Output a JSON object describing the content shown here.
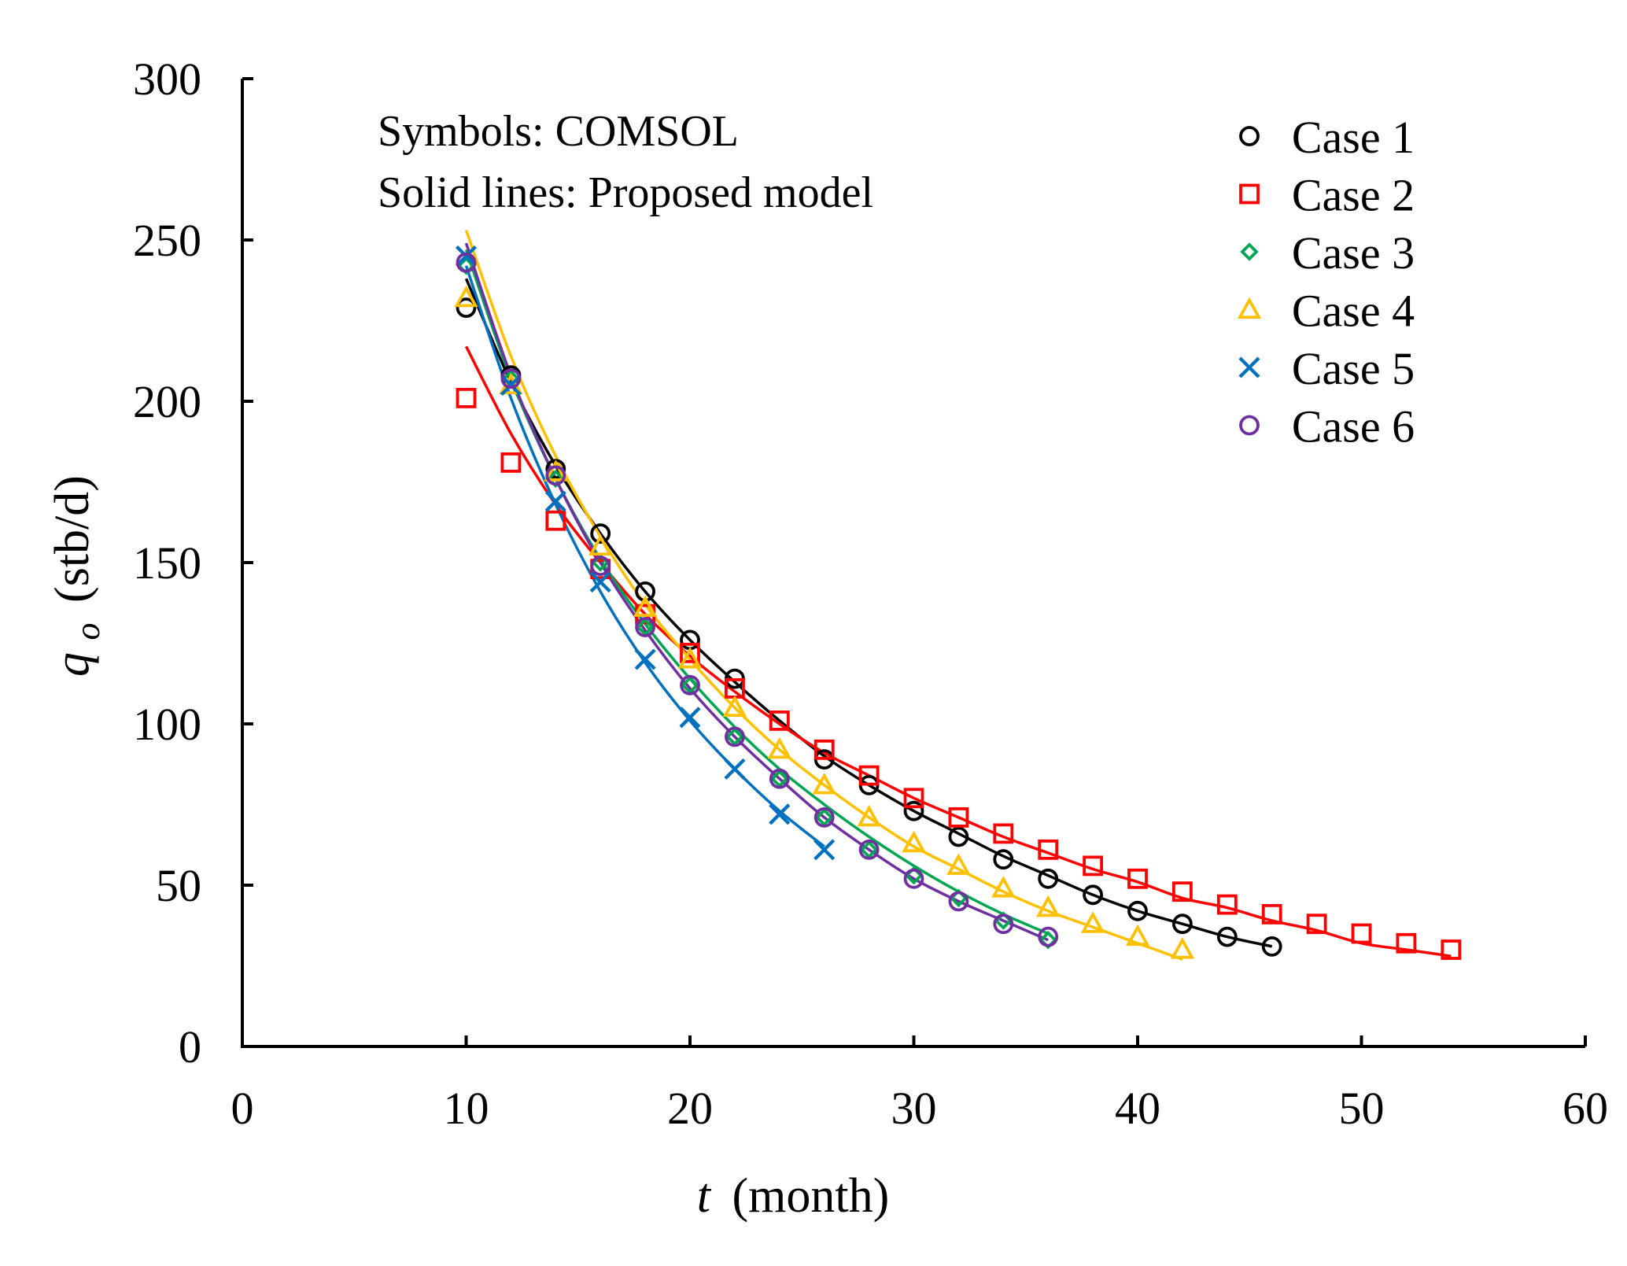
{
  "chart_data": {
    "type": "scatter",
    "xlabel": {
      "var": "t",
      "unit": "(month)"
    },
    "ylabel": {
      "var": "q",
      "sub": "o",
      "unit": "(stb/d)"
    },
    "xlim": [
      0,
      60
    ],
    "ylim": [
      0,
      300
    ],
    "xticks": [
      0,
      10,
      20,
      30,
      40,
      50,
      60
    ],
    "yticks": [
      0,
      50,
      100,
      150,
      200,
      250,
      300
    ],
    "grid": false,
    "legend_position": "top-right",
    "annotations": [
      "Symbols: COMSOL",
      "Solid lines: Proposed model"
    ],
    "series": [
      {
        "name": "Case 1",
        "color": "#000000",
        "marker": "circle",
        "points_x": [
          10,
          12,
          14,
          16,
          18,
          20,
          22,
          26,
          28,
          30,
          32,
          34,
          36,
          38,
          40,
          42,
          44,
          46
        ],
        "points_y": [
          229,
          208,
          179,
          159,
          141,
          126,
          114,
          89,
          81,
          73,
          65,
          58,
          52,
          47,
          42,
          38,
          34,
          31
        ],
        "line_x": [
          10,
          12,
          14,
          16,
          18,
          20,
          22,
          24,
          26,
          28,
          30,
          32,
          34,
          36,
          38,
          40,
          42,
          44,
          46
        ],
        "line_y": [
          238,
          206,
          180,
          159,
          141,
          126,
          113,
          101,
          90,
          81,
          73,
          66,
          59,
          53,
          47,
          42,
          38,
          34,
          31
        ]
      },
      {
        "name": "Case 2",
        "color": "#ff0000",
        "marker": "square",
        "points_x": [
          10,
          12,
          14,
          16,
          18,
          20,
          22,
          24,
          26,
          28,
          30,
          32,
          34,
          36,
          38,
          40,
          42,
          44,
          46,
          48,
          50,
          52,
          54
        ],
        "points_y": [
          201,
          181,
          163,
          148,
          134,
          122,
          111,
          101,
          92,
          84,
          77,
          71,
          66,
          61,
          56,
          52,
          48,
          44,
          41,
          38,
          35,
          32,
          30
        ],
        "line_x": [
          10,
          12,
          14,
          16,
          18,
          20,
          22,
          24,
          26,
          28,
          30,
          32,
          34,
          36,
          38,
          40,
          42,
          44,
          46,
          48,
          50,
          52,
          54
        ],
        "line_y": [
          217,
          190,
          168,
          150,
          134,
          121,
          110,
          100,
          91,
          84,
          77,
          71,
          65,
          60,
          55,
          51,
          46,
          43,
          39,
          36,
          32,
          30,
          28
        ]
      },
      {
        "name": "Case 3",
        "color": "#00a651",
        "marker": "diamond",
        "points_x": [
          10,
          12,
          14,
          16,
          18,
          20,
          22,
          24,
          26,
          28,
          30,
          32,
          34,
          36
        ],
        "points_y": [
          242,
          207,
          176,
          150,
          130,
          112,
          96,
          83,
          71,
          61,
          53,
          46,
          39,
          33
        ],
        "line_x": [
          10,
          12,
          14,
          16,
          18,
          20,
          22,
          24,
          26,
          28,
          30,
          32,
          34,
          36
        ],
        "line_y": [
          247,
          207,
          176,
          151,
          131,
          114,
          99,
          86,
          75,
          65,
          56,
          48,
          41,
          35
        ]
      },
      {
        "name": "Case 4",
        "color": "#ffc000",
        "marker": "triangle",
        "points_x": [
          10,
          12,
          14,
          16,
          18,
          20,
          22,
          24,
          26,
          28,
          30,
          32,
          34,
          36,
          38,
          40,
          42
        ],
        "points_y": [
          232,
          205,
          178,
          155,
          136,
          120,
          105,
          92,
          81,
          71,
          63,
          56,
          49,
          43,
          38,
          34,
          30
        ],
        "line_x": [
          10,
          12,
          14,
          16,
          18,
          20,
          22,
          24,
          26,
          28,
          30,
          32,
          34,
          36,
          38,
          40,
          42
        ],
        "line_y": [
          253,
          214,
          183,
          158,
          137,
          120,
          105,
          92,
          81,
          71,
          62,
          55,
          48,
          42,
          37,
          32,
          27
        ]
      },
      {
        "name": "Case 5",
        "color": "#0070c0",
        "marker": "cross",
        "points_x": [
          10,
          12,
          14,
          16,
          18,
          20,
          22,
          24,
          26
        ],
        "points_y": [
          245,
          205,
          169,
          144,
          120,
          102,
          86,
          72,
          61
        ],
        "line_x": [
          10,
          12,
          14,
          16,
          18,
          20,
          22,
          24,
          26
        ],
        "line_y": [
          242,
          201,
          168,
          141,
          119,
          101,
          86,
          73,
          62
        ]
      },
      {
        "name": "Case 6",
        "color": "#7030a0",
        "marker": "circle",
        "points_x": [
          10,
          12,
          14,
          16,
          18,
          20,
          22,
          24,
          26,
          28,
          30,
          32,
          34,
          36
        ],
        "points_y": [
          243,
          207,
          177,
          149,
          130,
          112,
          96,
          83,
          71,
          61,
          52,
          45,
          38,
          34
        ],
        "line_x": [
          10,
          12,
          14,
          16,
          18,
          20,
          22,
          24,
          26,
          28,
          30,
          32,
          34,
          36
        ],
        "line_y": [
          249,
          208,
          176,
          150,
          129,
          111,
          96,
          83,
          71,
          61,
          52,
          45,
          39,
          33
        ]
      }
    ]
  }
}
